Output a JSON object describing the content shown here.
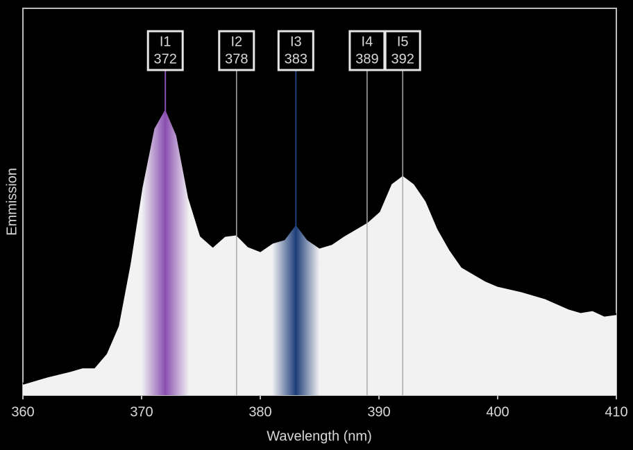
{
  "chart_data": {
    "type": "area",
    "x_label": "Wavelength  (nm)",
    "y_label": "Emmission",
    "xlim": [
      360,
      410
    ],
    "xticks": [
      360,
      370,
      380,
      390,
      400,
      410
    ],
    "ylim": [
      0,
      100
    ],
    "series": [
      {
        "color": "#f2f2f2",
        "x": [
          360,
          362,
          364,
          365,
          366,
          367,
          368,
          369,
          370,
          371,
          372,
          373,
          374,
          375,
          376,
          377,
          378,
          379,
          380,
          381,
          382,
          383,
          384,
          385,
          386,
          387,
          388,
          389,
          390,
          391,
          392,
          393,
          394,
          395,
          396,
          397,
          398,
          399,
          400,
          402,
          404,
          406,
          407,
          408,
          409,
          410
        ],
        "values": [
          3.0,
          4.8,
          6.3,
          7.2,
          7.2,
          10.8,
          17.9,
          34.1,
          53.8,
          69.0,
          74.4,
          67.2,
          51.1,
          41.2,
          38.5,
          41.2,
          41.6,
          38.5,
          37.3,
          39.4,
          40.3,
          44.4,
          40.3,
          38.2,
          39.1,
          41.2,
          43.0,
          44.8,
          47.5,
          54.7,
          57.0,
          54.7,
          50.2,
          43.0,
          37.6,
          33.2,
          31.4,
          29.6,
          28.3,
          26.9,
          25.1,
          22.4,
          21.5,
          22.0,
          20.6,
          21.0
        ]
      }
    ],
    "annotations": [
      {
        "label": "I1",
        "value": 372,
        "band_color": "#8a4fb0"
      },
      {
        "label": "I2",
        "value": 378
      },
      {
        "label": "I3",
        "value": 383,
        "band_color": "#1f3f7a"
      },
      {
        "label": "I4",
        "value": 389
      },
      {
        "label": "I5",
        "value": 392
      }
    ]
  }
}
